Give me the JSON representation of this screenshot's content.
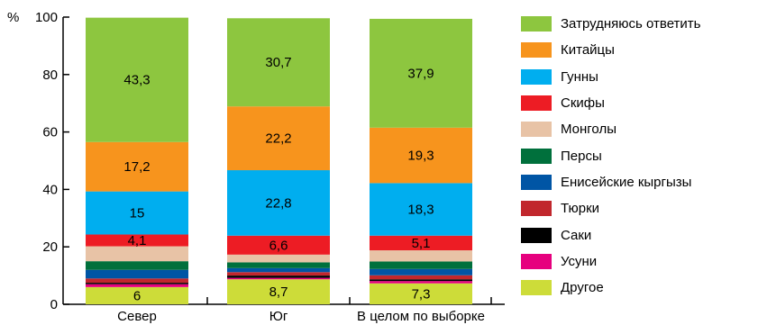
{
  "chart_data": {
    "type": "bar",
    "stacked": true,
    "y_unit_label": "%",
    "ylim": [
      0,
      100
    ],
    "yticks": [
      0,
      20,
      40,
      60,
      80,
      100
    ],
    "categories": [
      "Север",
      "Юг",
      "В целом по выборке"
    ],
    "series": [
      {
        "name": "Другое",
        "color": "#cddc39",
        "values": [
          6,
          8.7,
          7.3
        ],
        "labels": [
          "6",
          "8,7",
          "7,3"
        ]
      },
      {
        "name": "Усуни",
        "color": "#e6007e",
        "values": [
          1,
          0.5,
          0.8
        ],
        "labels": [
          "",
          "",
          ""
        ]
      },
      {
        "name": "Саки",
        "color": "#000000",
        "values": [
          0.5,
          0.8,
          0.6
        ],
        "labels": [
          "",
          "",
          ""
        ]
      },
      {
        "name": "Тюрки",
        "color": "#c1272d",
        "values": [
          1.5,
          1.2,
          1.4
        ],
        "labels": [
          "",
          "",
          ""
        ]
      },
      {
        "name": "Енисейские кыргызы",
        "color": "#0055a5",
        "values": [
          3,
          1.4,
          2.2
        ],
        "labels": [
          "",
          "",
          ""
        ]
      },
      {
        "name": "Персы",
        "color": "#00703c",
        "values": [
          3,
          2,
          2.6
        ],
        "labels": [
          "",
          "",
          ""
        ]
      },
      {
        "name": "Монголы",
        "color": "#e8c3a6",
        "values": [
          5.2,
          2.7,
          3.9
        ],
        "labels": [
          "",
          "",
          ""
        ]
      },
      {
        "name": "Скифы",
        "color": "#ed1c24",
        "values": [
          4.1,
          6.6,
          5.1
        ],
        "labels": [
          "4,1",
          "6,6",
          "5,1"
        ]
      },
      {
        "name": "Гунны",
        "color": "#00aeef",
        "values": [
          15,
          22.8,
          18.3
        ],
        "labels": [
          "15",
          "22,8",
          "18,3"
        ]
      },
      {
        "name": "Китайцы",
        "color": "#f7941d",
        "values": [
          17.2,
          22.2,
          19.3
        ],
        "labels": [
          "17,2",
          "22,2",
          "19,3"
        ]
      },
      {
        "name": "Затрудняюсь ответить",
        "color": "#8dc63f",
        "values": [
          43.3,
          30.7,
          37.9
        ],
        "labels": [
          "43,3",
          "30,7",
          "37,9"
        ]
      }
    ],
    "legend_order": [
      "Затрудняюсь ответить",
      "Китайцы",
      "Гунны",
      "Скифы",
      "Монголы",
      "Персы",
      "Енисейские кыргызы",
      "Тюрки",
      "Саки",
      "Усуни",
      "Другое"
    ],
    "legend_position": "right",
    "grid": false
  }
}
